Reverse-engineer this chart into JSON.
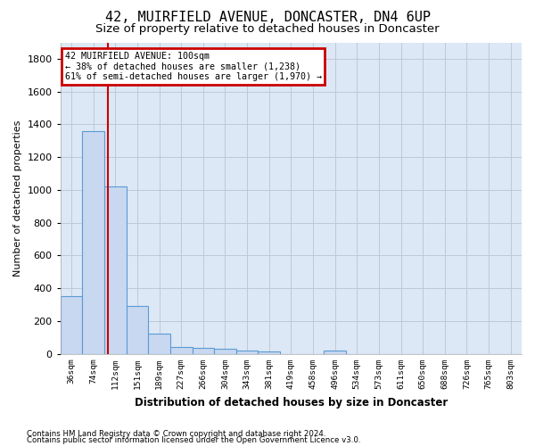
{
  "title": "42, MUIRFIELD AVENUE, DONCASTER, DN4 6UP",
  "subtitle": "Size of property relative to detached houses in Doncaster",
  "xlabel": "Distribution of detached houses by size in Doncaster",
  "ylabel": "Number of detached properties",
  "footer_line1": "Contains HM Land Registry data © Crown copyright and database right 2024.",
  "footer_line2": "Contains public sector information licensed under the Open Government Licence v3.0.",
  "bin_labels": [
    "36sqm",
    "74sqm",
    "112sqm",
    "151sqm",
    "189sqm",
    "227sqm",
    "266sqm",
    "304sqm",
    "343sqm",
    "381sqm",
    "419sqm",
    "458sqm",
    "496sqm",
    "534sqm",
    "573sqm",
    "611sqm",
    "650sqm",
    "688sqm",
    "726sqm",
    "765sqm",
    "803sqm"
  ],
  "bar_values": [
    350,
    1360,
    1020,
    290,
    125,
    40,
    35,
    30,
    20,
    15,
    0,
    0,
    18,
    0,
    0,
    0,
    0,
    0,
    0,
    0,
    0
  ],
  "bar_color": "#c8d8f0",
  "bar_edge_color": "#5b9bd5",
  "bg_color": "#dce8f5",
  "ylim": [
    0,
    1900
  ],
  "yticks": [
    0,
    200,
    400,
    600,
    800,
    1000,
    1200,
    1400,
    1600,
    1800
  ],
  "vline_color": "#cc0000",
  "vline_x": 1.68,
  "annotation_text": "42 MUIRFIELD AVENUE: 100sqm\n← 38% of detached houses are smaller (1,238)\n61% of semi-detached houses are larger (1,970) →",
  "annotation_box_color": "#cc0000",
  "background_color": "#ffffff",
  "grid_color": "#c0c8d8",
  "title_fontsize": 11,
  "subtitle_fontsize": 9.5
}
